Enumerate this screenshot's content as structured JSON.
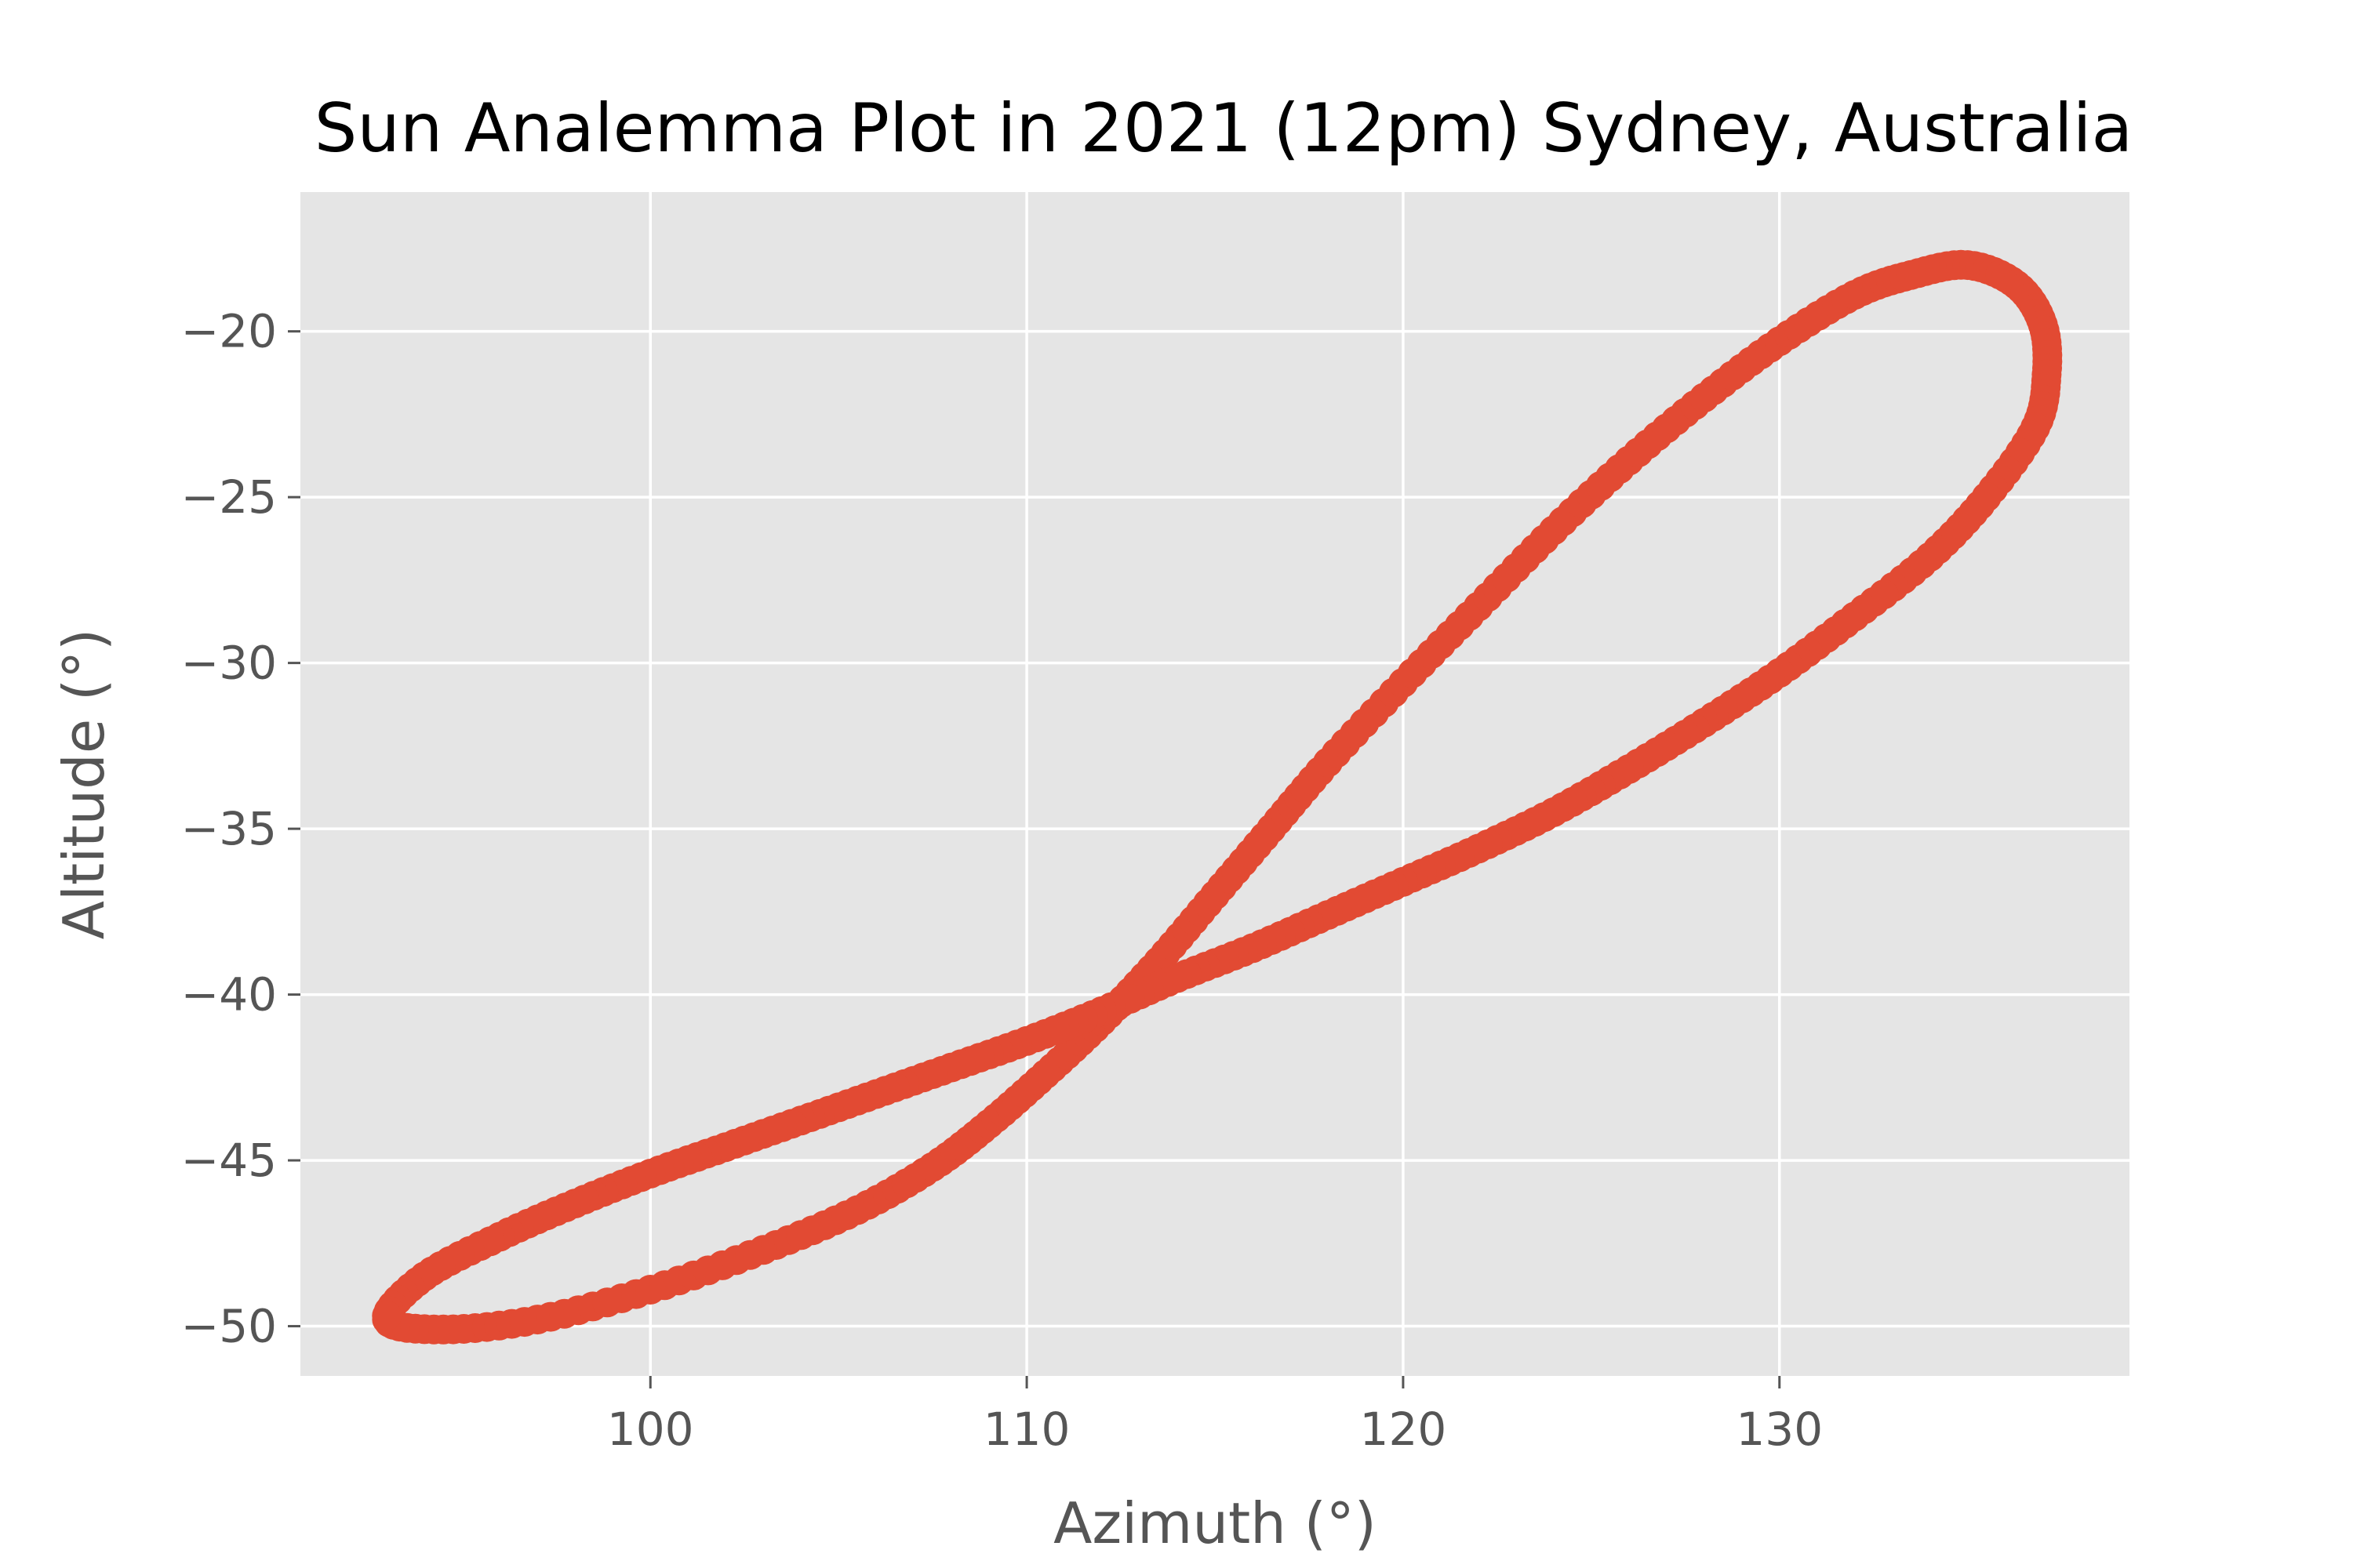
{
  "chart_data": {
    "type": "scatter",
    "title": "Sun Analemma Plot in 2021 (12pm) Sydney, Australia",
    "xlabel": "Azimuth (°)",
    "ylabel": "Altitude (°)",
    "xlim": [
      90.7,
      139.3
    ],
    "ylim": [
      -51.5,
      -15.8
    ],
    "xticks": [
      100,
      110,
      120,
      130
    ],
    "yticks": [
      -20,
      -25,
      -30,
      -35,
      -40,
      -45,
      -50
    ],
    "xtick_labels": [
      "100",
      "110",
      "120",
      "130"
    ],
    "ytick_labels": [
      "−20",
      "−25",
      "−30",
      "−35",
      "−40",
      "−45",
      "−50"
    ],
    "grid": true,
    "marker_color": "#E24A33",
    "background_color": "#E5E5E5",
    "grid_color": "#FFFFFF",
    "series": [
      {
        "x": [
          93.0,
          94.5,
          97.0,
          100.0,
          103.0,
          105.5,
          107.5,
          109.0,
          110.5,
          112.0,
          113.5,
          115.0,
          116.5,
          118.0,
          120.0,
          122.0,
          124.0,
          126.0,
          128.0,
          130.0,
          132.0,
          133.5,
          135.0,
          136.3,
          137.0,
          137.1,
          136.8,
          135.5,
          134.0,
          132.0,
          130.0,
          128.0,
          126.0,
          124.0,
          122.0,
          120.0,
          118.0,
          116.0,
          114.0,
          112.0,
          110.0,
          108.0,
          106.0,
          104.0,
          102.0,
          100.0,
          98.0,
          96.0,
          94.0,
          93.0
        ],
        "y": [
          -49.8,
          -50.1,
          -49.8,
          -48.9,
          -47.7,
          -46.5,
          -45.2,
          -43.9,
          -42.4,
          -40.8,
          -39.0,
          -37.0,
          -35.0,
          -33.0,
          -30.6,
          -28.3,
          -26.0,
          -23.9,
          -22.0,
          -20.3,
          -18.9,
          -18.3,
          -18.0,
          -18.6,
          -19.8,
          -21.3,
          -22.9,
          -25.0,
          -26.8,
          -28.6,
          -30.3,
          -31.8,
          -33.2,
          -34.5,
          -35.6,
          -36.6,
          -37.6,
          -38.6,
          -39.5,
          -40.5,
          -41.4,
          -42.2,
          -43.0,
          -43.8,
          -44.6,
          -45.4,
          -46.3,
          -47.3,
          -48.5,
          -49.8
        ]
      }
    ]
  }
}
